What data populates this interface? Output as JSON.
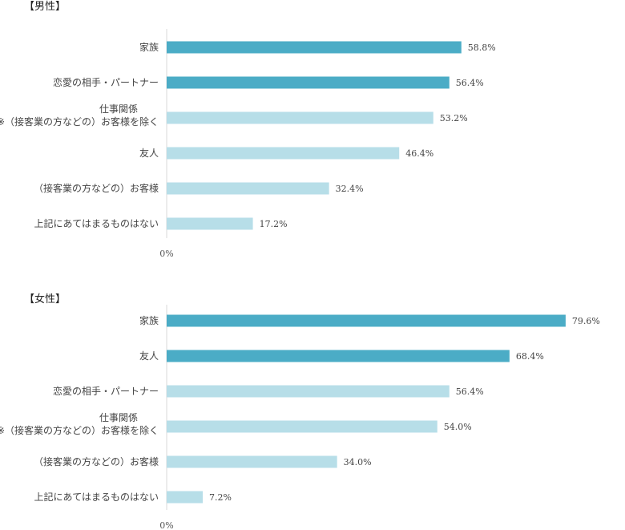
{
  "colors": {
    "highlight": "#4bacc6",
    "normal": "#b7dee8",
    "grid": "#d9d9d9"
  },
  "chart_data": [
    {
      "type": "bar",
      "orientation": "horizontal",
      "title": "【男性】",
      "categories": [
        "家族",
        "恋愛の相手・パートナー",
        "仕事関係\n※（接客業の方などの）お客様を除く",
        "友人",
        "（接客業の方などの）お客様",
        "上記にあてはまるものはない"
      ],
      "values": [
        58.8,
        56.4,
        53.2,
        46.4,
        32.4,
        17.2
      ],
      "value_labels": [
        "58.8%",
        "56.4%",
        "53.2%",
        "46.4%",
        "32.4%",
        "17.2%"
      ],
      "highlighted": [
        true,
        true,
        false,
        false,
        false,
        false
      ],
      "xlim": [
        0,
        90
      ],
      "ticks": [
        "0%",
        "10%",
        "20%",
        "30%",
        "40%",
        "50%",
        "60%",
        "70%",
        "80%",
        "90%"
      ],
      "grid": true
    },
    {
      "type": "bar",
      "orientation": "horizontal",
      "title": "【女性】",
      "categories": [
        "家族",
        "友人",
        "恋愛の相手・パートナー",
        "仕事関係\n※（接客業の方などの）お客様を除く",
        "（接客業の方などの）お客様",
        "上記にあてはまるものはない"
      ],
      "values": [
        79.6,
        68.4,
        56.4,
        54.0,
        34.0,
        7.2
      ],
      "value_labels": [
        "79.6%",
        "68.4%",
        "56.4%",
        "54.0%",
        "34.0%",
        "7.2%"
      ],
      "highlighted": [
        true,
        true,
        false,
        false,
        false,
        false
      ],
      "xlim": [
        0,
        90
      ],
      "ticks": [
        "0%",
        "10%",
        "20%",
        "30%",
        "40%",
        "50%",
        "60%",
        "70%",
        "80%",
        "90%"
      ],
      "grid": true
    }
  ]
}
